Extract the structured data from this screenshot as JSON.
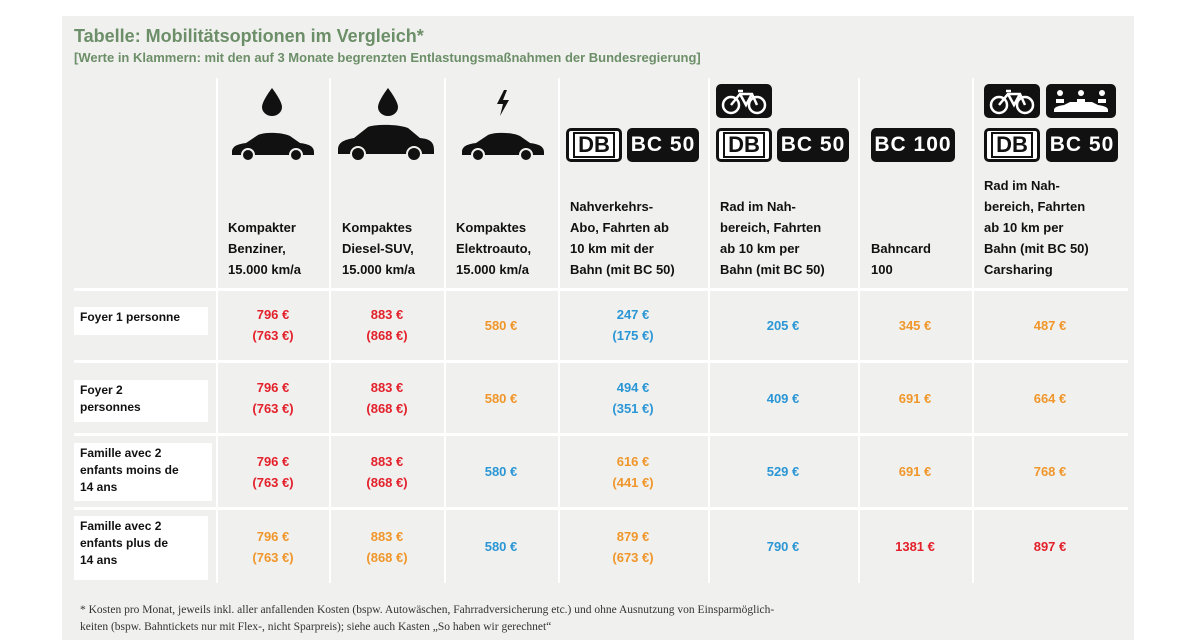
{
  "title": "Tabelle: Mobilitätsoptionen im Vergleich*",
  "subtitle": "[Werte in Klammern: mit den auf 3 Monate begrenzten Entlastungsmaßnahmen der Bundesregierung]",
  "badges": {
    "db": "DB",
    "bc50": "BC 50",
    "bc100": "BC 100"
  },
  "columns": [
    {
      "label": "Kompakter\nBenziner,\n15.000 km/a",
      "icon": "fuel-drop-car-icon"
    },
    {
      "label": "Kompaktes\nDiesel-SUV,\n15.000 km/a",
      "icon": "fuel-drop-suv-icon"
    },
    {
      "label": "Kompaktes\nElektroauto,\n15.000 km/a",
      "icon": "lightning-car-icon"
    },
    {
      "label": "Nahverkehrs-\nAbo, Fahrten ab\n10 km mit der\nBahn (mit BC 50)",
      "icon": "db-bc50-icon"
    },
    {
      "label": "Rad im Nah-\nbereich, Fahrten\nab 10 km per\nBahn (mit BC 50)",
      "icon": "bike-db-bc50-icon"
    },
    {
      "label": "Bahncard\n100",
      "icon": "bc100-icon"
    },
    {
      "label": "Rad im Nah-\nbereich, Fahrten\nab 10 km per\nBahn (mit BC 50)\nCarsharing",
      "icon": "bike-carsharing-db-bc50-icon"
    }
  ],
  "rows": [
    {
      "label": "Foyer 1 personne",
      "cells": [
        {
          "main": "796 €",
          "sub": "(763 €)",
          "color": "red"
        },
        {
          "main": "883 €",
          "sub": "(868 €)",
          "color": "red"
        },
        {
          "main": "580 €",
          "sub": "",
          "color": "orange"
        },
        {
          "main": "247 €",
          "sub": "(175 €)",
          "color": "blue"
        },
        {
          "main": "205 €",
          "sub": "",
          "color": "blue"
        },
        {
          "main": "345 €",
          "sub": "",
          "color": "orange"
        },
        {
          "main": "487 €",
          "sub": "",
          "color": "orange"
        }
      ]
    },
    {
      "label": "Foyer 2\npersonnes",
      "cells": [
        {
          "main": "796 €",
          "sub": "(763 €)",
          "color": "red"
        },
        {
          "main": "883 €",
          "sub": "(868 €)",
          "color": "red"
        },
        {
          "main": "580 €",
          "sub": "",
          "color": "orange"
        },
        {
          "main": "494 €",
          "sub": "(351 €)",
          "color": "blue"
        },
        {
          "main": "409 €",
          "sub": "",
          "color": "blue"
        },
        {
          "main": "691 €",
          "sub": "",
          "color": "orange"
        },
        {
          "main": "664 €",
          "sub": "",
          "color": "orange"
        }
      ]
    },
    {
      "label": "Famille avec 2\nenfants moins de\n14 ans",
      "cells": [
        {
          "main": "796 €",
          "sub": "(763 €)",
          "color": "red"
        },
        {
          "main": "883 €",
          "sub": "(868 €)",
          "color": "red"
        },
        {
          "main": "580 €",
          "sub": "",
          "color": "blue"
        },
        {
          "main": "616 €",
          "sub": "(441 €)",
          "color": "orange"
        },
        {
          "main": "529 €",
          "sub": "",
          "color": "blue"
        },
        {
          "main": "691 €",
          "sub": "",
          "color": "orange"
        },
        {
          "main": "768 €",
          "sub": "",
          "color": "orange"
        }
      ]
    },
    {
      "label": "Famille avec 2\nenfants plus de\n14 ans",
      "cells": [
        {
          "main": "796 €",
          "sub": "(763 €)",
          "color": "orange"
        },
        {
          "main": "883 €",
          "sub": "(868 €)",
          "color": "orange"
        },
        {
          "main": "580 €",
          "sub": "",
          "color": "blue"
        },
        {
          "main": "879 €",
          "sub": "(673 €)",
          "color": "orange"
        },
        {
          "main": "790 €",
          "sub": "",
          "color": "blue"
        },
        {
          "main": "1381 €",
          "sub": "",
          "color": "red"
        },
        {
          "main": "897 €",
          "sub": "",
          "color": "red"
        }
      ]
    }
  ],
  "footnote": "* Kosten pro Monat, jeweils inkl. aller anfallenden Kosten (bspw. Autowäschen, Fahrradversicherung etc.) und ohne Ausnutzung von Einsparmöglich-\nkeiten (bspw. Bahntickets nur mit Flex-, nicht Sparpreis); siehe auch Kasten „So haben wir gerechnet“",
  "colors": {
    "red": "#e3202b",
    "orange": "#f0962a",
    "blue": "#2b96d6",
    "title": "#6c8e68"
  }
}
